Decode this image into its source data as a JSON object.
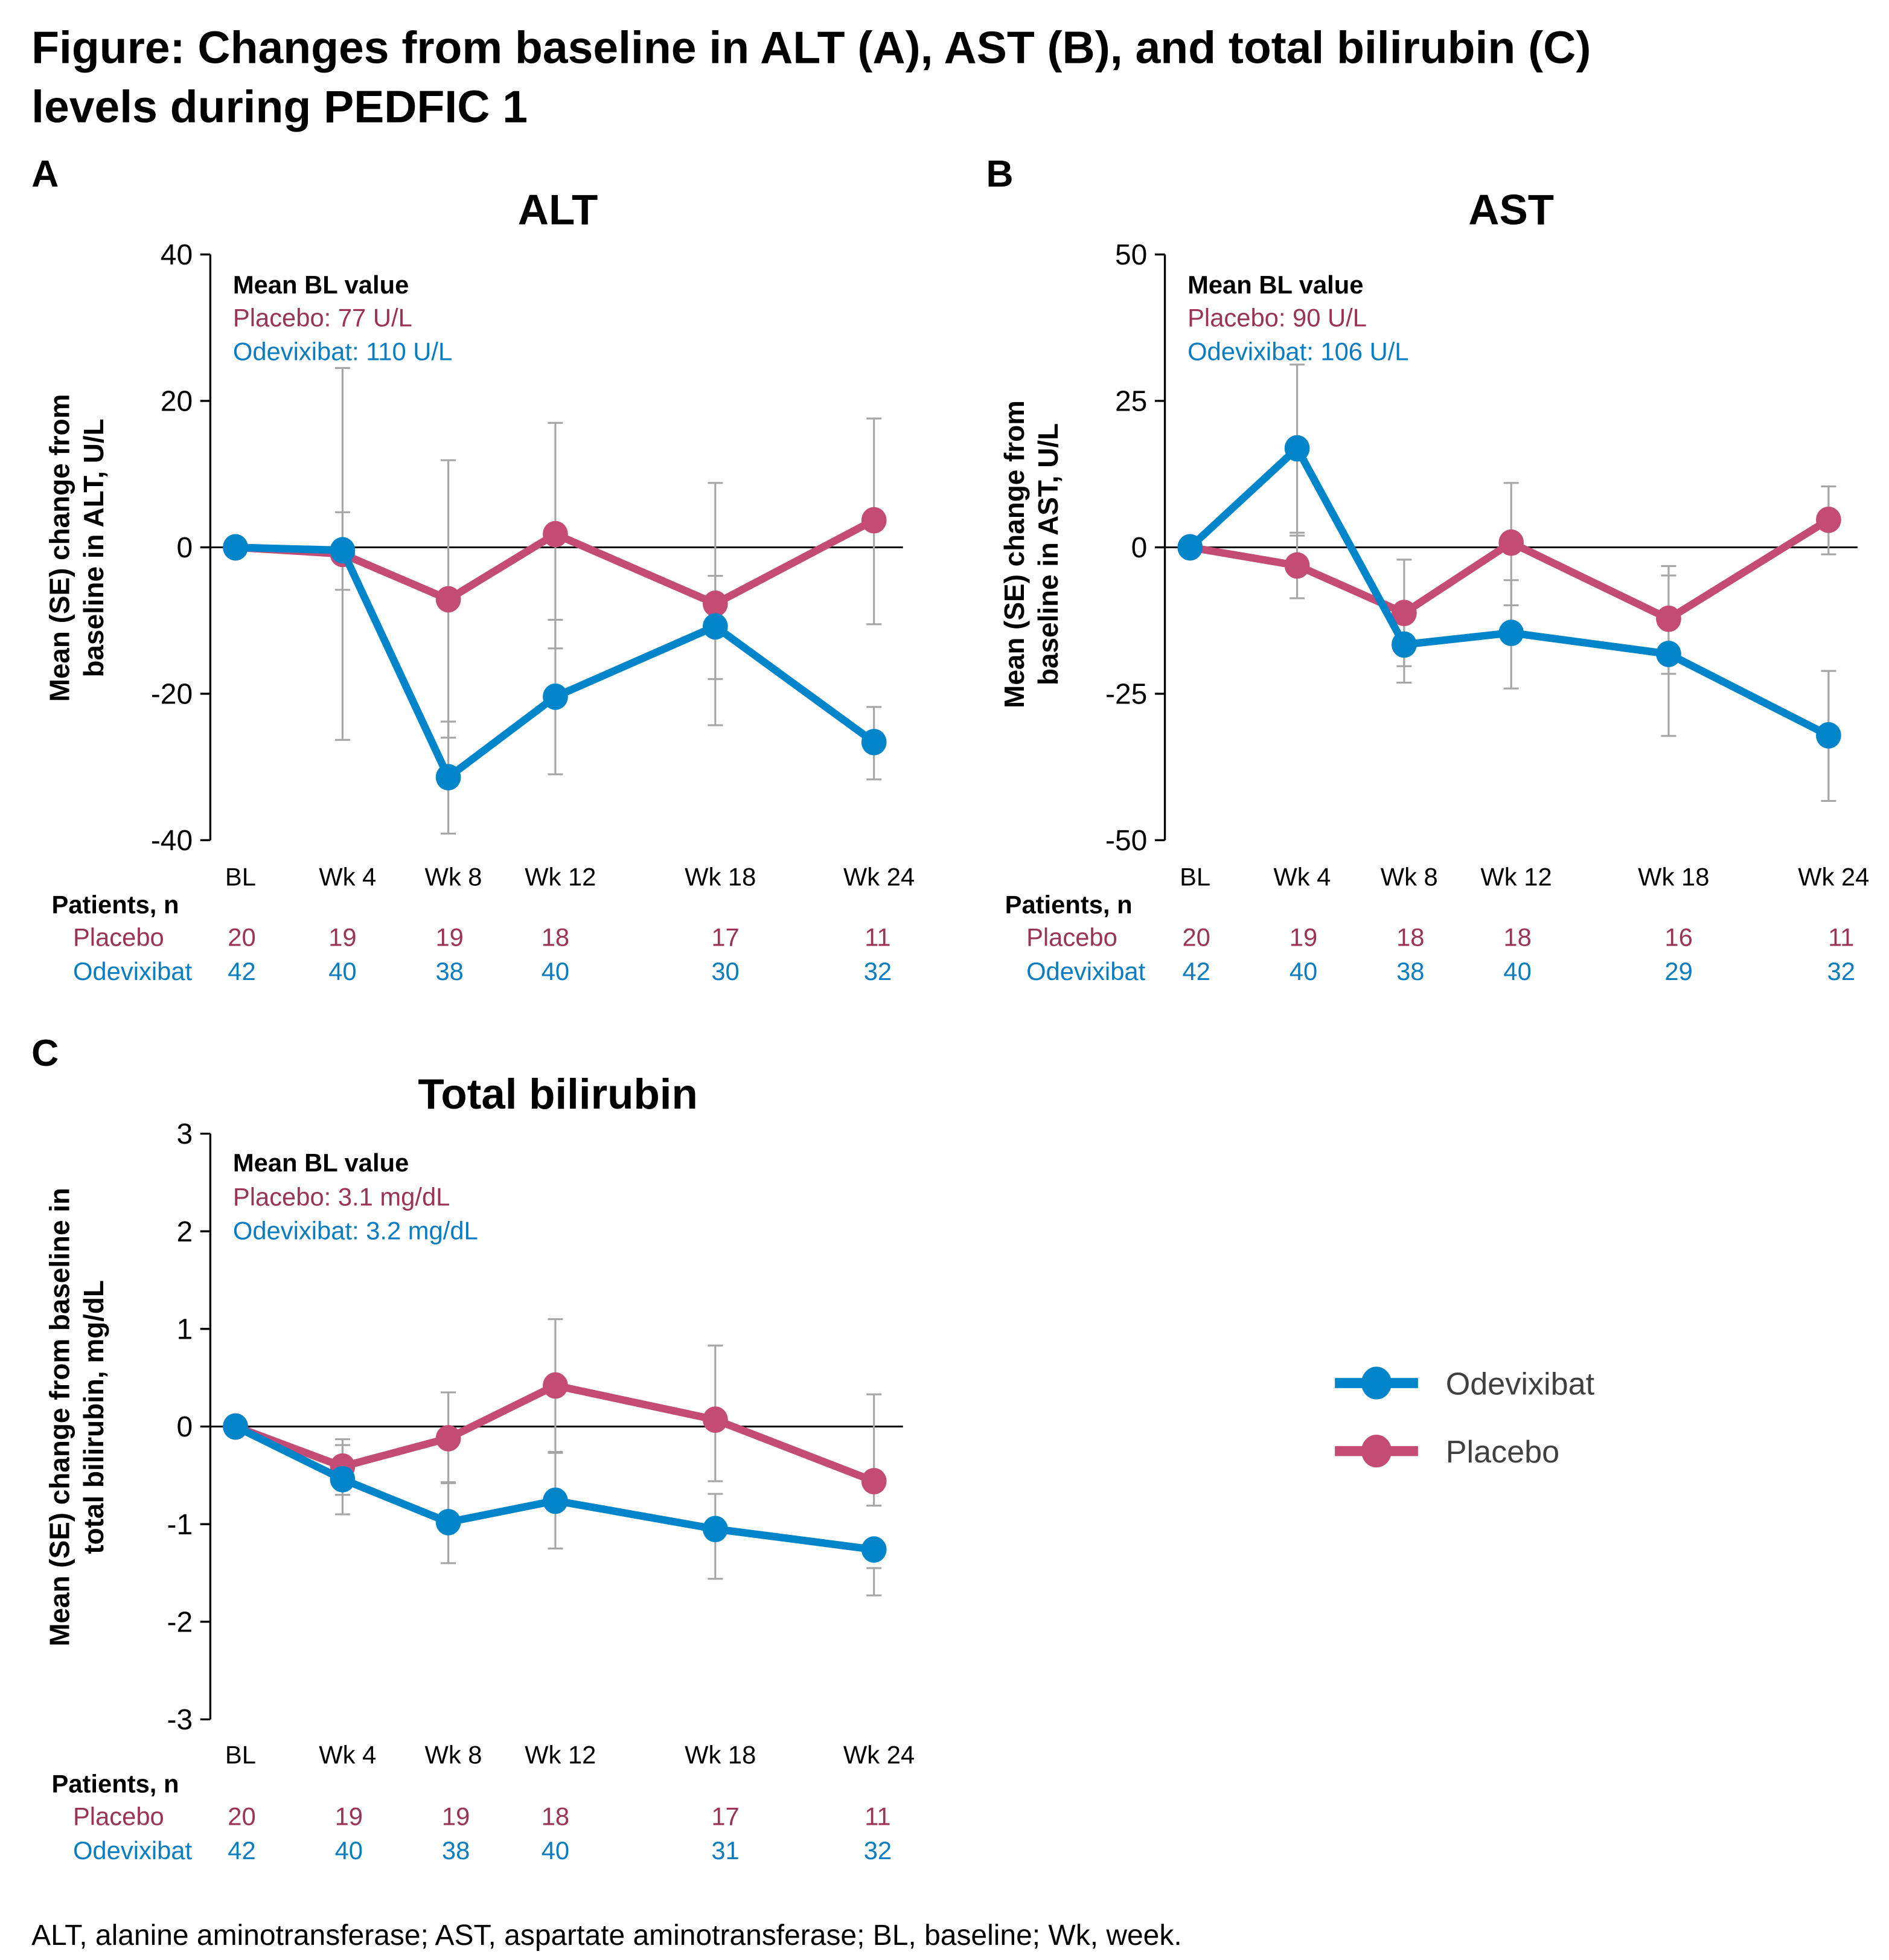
{
  "figure": {
    "title_line1": "Figure: Changes from baseline in ALT  (A), AST (B), and total bilirubin (C)",
    "title_line2": "levels during PEDFIC 1",
    "footnote": "ALT, alanine aminotransferase; AST, aspartate aminotransferase; BL, baseline; Wk, week."
  },
  "colors": {
    "odevixibat": "#0085ca",
    "placebo": "#c44b73",
    "odevixibat_text": "#0a7dc2",
    "placebo_text": "#9b3355",
    "error_bar": "#a6a6a6"
  },
  "legend": {
    "placement": "right of panel C",
    "items": [
      {
        "label": "Odevixibat",
        "series": "odevixibat"
      },
      {
        "label": "Placebo",
        "series": "placebo"
      }
    ]
  },
  "chart_data": [
    {
      "panel": "A",
      "type": "line",
      "title": "ALT",
      "ylabel_line1": "Mean (SE) change from",
      "ylabel_line2": "baseline in ALT, U/L",
      "xlabel": "",
      "categories": [
        "BL",
        "Wk 4",
        "Wk 8",
        "Wk 12",
        "Wk 18",
        "Wk 24"
      ],
      "x_weeks": [
        0,
        4,
        8,
        12,
        18,
        24
      ],
      "ylim": [
        -40,
        40
      ],
      "yticks": [
        40,
        20,
        0,
        -20,
        -40
      ],
      "ytick_labels": [
        "40",
        "20",
        "0",
        "-20",
        "-40"
      ],
      "reference_line": 0,
      "mean_bl": {
        "heading": "Mean BL value",
        "placebo": "Placebo: 77 U/L",
        "odevixibat": "Odevixibat: 110 U/L"
      },
      "series": [
        {
          "name": "Placebo",
          "key": "placebo",
          "values": [
            0,
            -0.9,
            -7.1,
            1.8,
            -7.7,
            3.7
          ],
          "err_low": [
            null,
            -5.8,
            -26.0,
            -13.8,
            -18.0,
            -10.5
          ],
          "err_high": [
            null,
            4.8,
            11.9,
            17.0,
            8.8,
            17.6
          ]
        },
        {
          "name": "Odevixibat",
          "key": "odevixibat",
          "values": [
            0,
            -0.4,
            -31.4,
            -20.4,
            -10.8,
            -26.6
          ],
          "err_low": [
            null,
            -26.3,
            -39.1,
            -31.0,
            -24.3,
            -31.7
          ],
          "err_high": [
            null,
            24.5,
            -23.8,
            -9.9,
            -3.9,
            -21.8
          ]
        }
      ],
      "patients": {
        "heading": "Patients, n",
        "placebo_label": "Placebo",
        "odevixibat_label": "Odevixibat",
        "placebo": [
          "20",
          "19",
          "19",
          "18",
          "17",
          "11"
        ],
        "odevixibat": [
          "42",
          "40",
          "38",
          "40",
          "30",
          "32"
        ]
      }
    },
    {
      "panel": "B",
      "type": "line",
      "title": "AST",
      "ylabel_line1": "Mean (SE) change from",
      "ylabel_line2": "baseline in AST, U/L",
      "xlabel": "",
      "categories": [
        "BL",
        "Wk 4",
        "Wk 8",
        "Wk 12",
        "Wk 18",
        "Wk 24"
      ],
      "x_weeks": [
        0,
        4,
        8,
        12,
        18,
        24
      ],
      "ylim": [
        -50,
        50
      ],
      "yticks": [
        50,
        25,
        0,
        -25,
        -50
      ],
      "ytick_labels": [
        "50",
        "25",
        "0",
        "-25",
        "-50"
      ],
      "reference_line": 0,
      "mean_bl": {
        "heading": "Mean BL value",
        "placebo": "Placebo: 90 U/L",
        "odevixibat": "Odevixibat: 106 U/L"
      },
      "series": [
        {
          "name": "Placebo",
          "key": "placebo",
          "values": [
            0,
            -3.1,
            -11.2,
            0.8,
            -12.2,
            4.7
          ],
          "err_low": [
            null,
            -8.7,
            -20.3,
            -9.9,
            -21.6,
            -1.2
          ],
          "err_high": [
            null,
            2.5,
            -2.1,
            11.0,
            -4.8,
            10.4
          ]
        },
        {
          "name": "Odevixibat",
          "key": "odevixibat",
          "values": [
            0,
            16.9,
            -16.6,
            -14.6,
            -18.2,
            -32.1
          ],
          "err_low": [
            null,
            2.0,
            -23.1,
            -24.1,
            -32.2,
            -43.3
          ],
          "err_high": [
            null,
            31.2,
            -11.5,
            -5.6,
            -3.2,
            -21.1
          ]
        }
      ],
      "patients": {
        "heading": "Patients, n",
        "placebo_label": "Placebo",
        "odevixibat_label": "Odevixibat",
        "placebo": [
          "20",
          "19",
          "18",
          "18",
          "16",
          "11"
        ],
        "odevixibat": [
          "42",
          "40",
          "38",
          "40",
          "29",
          "32"
        ]
      }
    },
    {
      "panel": "C",
      "type": "line",
      "title": "Total bilirubin",
      "ylabel_line1": "Mean (SE) change from baseline in",
      "ylabel_line2": "total bilirubin, mg/dL",
      "xlabel": "",
      "categories": [
        "BL",
        "Wk 4",
        "Wk 8",
        "Wk 12",
        "Wk 18",
        "Wk 24"
      ],
      "x_weeks": [
        0,
        4,
        8,
        12,
        18,
        24
      ],
      "ylim": [
        -3,
        3
      ],
      "yticks": [
        3,
        2,
        1,
        0,
        -1,
        -2,
        -3
      ],
      "ytick_labels": [
        "3",
        "2",
        "1",
        "0",
        "-1",
        "-2",
        "-3"
      ],
      "reference_line": 0,
      "mean_bl": {
        "heading": "Mean BL value",
        "placebo": "Placebo: 3.1 mg/dL",
        "odevixibat": "Odevixibat: 3.2 mg/dL"
      },
      "series": [
        {
          "name": "Placebo",
          "key": "placebo",
          "values": [
            0,
            -0.41,
            -0.12,
            0.42,
            0.07,
            -0.56
          ],
          "err_low": [
            null,
            -0.7,
            -0.57,
            -0.27,
            -0.56,
            -0.81
          ],
          "err_high": [
            null,
            -0.13,
            0.35,
            1.1,
            0.83,
            0.33
          ]
        },
        {
          "name": "Odevixibat",
          "key": "odevixibat",
          "values": [
            0,
            -0.54,
            -0.98,
            -0.76,
            -1.05,
            -1.26
          ],
          "err_low": [
            null,
            -0.9,
            -1.4,
            -1.25,
            -1.56,
            -1.73
          ],
          "err_high": [
            null,
            -0.19,
            -0.58,
            -0.26,
            -0.69,
            -1.45
          ]
        }
      ],
      "patients": {
        "heading": "Patients, n",
        "placebo_label": "Placebo",
        "odevixibat_label": "Odevixibat",
        "placebo": [
          "20",
          "19",
          "19",
          "18",
          "17",
          "11"
        ],
        "odevixibat": [
          "42",
          "40",
          "38",
          "40",
          "31",
          "32"
        ]
      }
    }
  ],
  "panel_labels": [
    "A",
    "B",
    "C"
  ]
}
